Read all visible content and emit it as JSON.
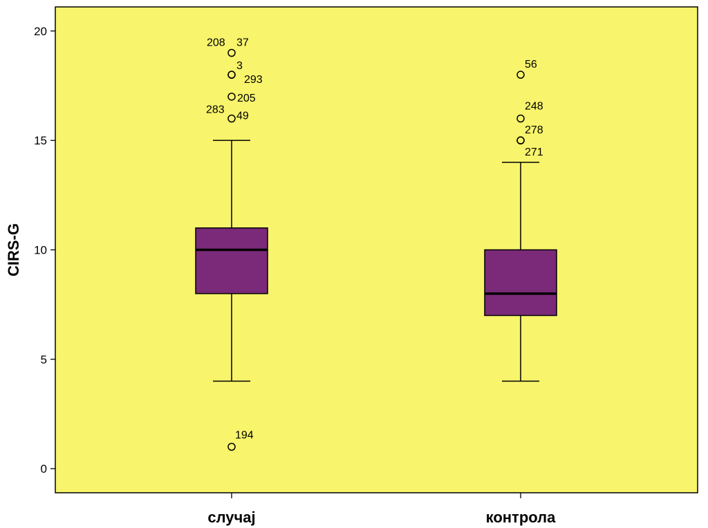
{
  "chart_data": {
    "type": "boxplot",
    "title": "",
    "xlabel": "",
    "ylabel": "CIRS-G",
    "ylim": [
      -1.1,
      21.1
    ],
    "yticks": [
      0,
      5,
      10,
      15,
      20
    ],
    "categories": [
      "случај",
      "контрола"
    ],
    "boxes": [
      {
        "category": "случај",
        "whisker_low": 4,
        "q1": 8,
        "median": 10,
        "q3": 11,
        "whisker_high": 15,
        "outliers": [
          {
            "value": 19,
            "labels": [
              "208",
              "37"
            ]
          },
          {
            "value": 18,
            "labels": [
              "3"
            ]
          },
          {
            "value": 18,
            "labels": [
              "293"
            ]
          },
          {
            "value": 17,
            "labels": [
              "205"
            ]
          },
          {
            "value": 16,
            "labels": [
              "283",
              "49"
            ]
          },
          {
            "value": 1,
            "labels": [
              "194"
            ]
          }
        ]
      },
      {
        "category": "контрола",
        "whisker_low": 4,
        "q1": 7,
        "median": 8,
        "q3": 10,
        "whisker_high": 14,
        "outliers": [
          {
            "value": 18,
            "labels": [
              "56"
            ]
          },
          {
            "value": 16,
            "labels": [
              "248"
            ]
          },
          {
            "value": 15,
            "labels": [
              "278"
            ]
          },
          {
            "value": 15,
            "labels": [
              "271"
            ]
          }
        ]
      }
    ],
    "colors": {
      "plot_background": "#f8f46c",
      "box_fill": "#7a2a78",
      "line": "#000000"
    },
    "grid": false,
    "legend": "none"
  }
}
